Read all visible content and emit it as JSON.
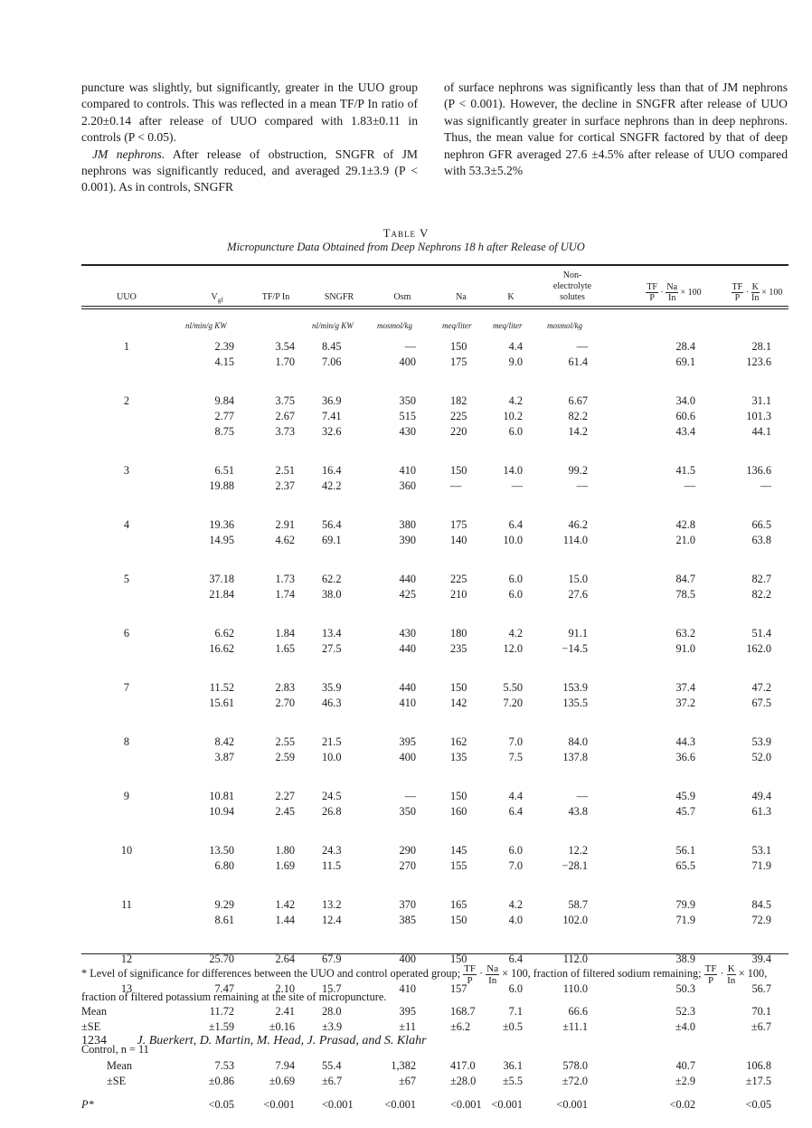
{
  "body_text": {
    "left": {
      "p1": "puncture was slightly, but significantly, greater in the UUO group compared to controls. This was reflected in a mean TF/P In ratio of 2.20±0.14 after release of UUO compared with 1.83±0.11 in controls (P < 0.05).",
      "p2_heading": "JM nephrons.",
      "p2": " After release of obstruction, SNGFR of JM nephrons was significantly reduced, and averaged 29.1±3.9 (P < 0.001). As in controls, SNGFR"
    },
    "right": {
      "p1": "of surface nephrons was significantly less than that of JM nephrons (P < 0.001). However, the decline in SNGFR after release of UUO was significantly greater in surface nephrons than in deep nephrons. Thus, the mean value for cortical SNGFR factored by that of deep nephron GFR averaged 27.6 ±4.5% after release of UUO compared with 53.3±5.2%"
    }
  },
  "table": {
    "title": "Table V",
    "subtitle": "Micropuncture Data Obtained from Deep Nephrons 18 h after Release of UUO",
    "headers": {
      "uuo": "UUO",
      "vg": "V",
      "vg_sub": "gf",
      "tfp_in": "TF/P In",
      "sngfr": "SNGFR",
      "osm": "Osm",
      "na": "Na",
      "k": "K",
      "nes_1": "Non-",
      "nes_2": "electrolyte",
      "nes_3": "solutes",
      "tf": "TF",
      "p": "P",
      "na_num": "Na",
      "k_num": "K",
      "in": "In",
      "times100": "× 100"
    },
    "units": {
      "vg": "nl/min/g KW",
      "sngfr": "nl/min/g KW",
      "osm": "mosmol/kg",
      "na": "meq/liter",
      "k": "meq/liter",
      "nes": "mosmol/kg"
    },
    "groups": [
      {
        "label": "1",
        "rows": [
          [
            "2.39",
            "3.54",
            "8.45",
            "—",
            "150",
            "4.4",
            "—",
            "28.4",
            "28.1"
          ],
          [
            "4.15",
            "1.70",
            "7.06",
            "400",
            "175",
            "9.0",
            "61.4",
            "69.1",
            "123.6"
          ]
        ]
      },
      {
        "label": "2",
        "rows": [
          [
            "9.84",
            "3.75",
            "36.9",
            "350",
            "182",
            "4.2",
            "6.67",
            "34.0",
            "31.1"
          ],
          [
            "2.77",
            "2.67",
            "7.41",
            "515",
            "225",
            "10.2",
            "82.2",
            "60.6",
            "101.3"
          ],
          [
            "8.75",
            "3.73",
            "32.6",
            "430",
            "220",
            "6.0",
            "14.2",
            "43.4",
            "44.1"
          ]
        ]
      },
      {
        "label": "3",
        "rows": [
          [
            "6.51",
            "2.51",
            "16.4",
            "410",
            "150",
            "14.0",
            "99.2",
            "41.5",
            "136.6"
          ],
          [
            "19.88",
            "2.37",
            "42.2",
            "360",
            "—",
            "—",
            "—",
            "—",
            "—"
          ]
        ]
      },
      {
        "label": "4",
        "rows": [
          [
            "19.36",
            "2.91",
            "56.4",
            "380",
            "175",
            "6.4",
            "46.2",
            "42.8",
            "66.5"
          ],
          [
            "14.95",
            "4.62",
            "69.1",
            "390",
            "140",
            "10.0",
            "114.0",
            "21.0",
            "63.8"
          ]
        ]
      },
      {
        "label": "5",
        "rows": [
          [
            "37.18",
            "1.73",
            "62.2",
            "440",
            "225",
            "6.0",
            "15.0",
            "84.7",
            "82.7"
          ],
          [
            "21.84",
            "1.74",
            "38.0",
            "425",
            "210",
            "6.0",
            "27.6",
            "78.5",
            "82.2"
          ]
        ]
      },
      {
        "label": "6",
        "rows": [
          [
            "6.62",
            "1.84",
            "13.4",
            "430",
            "180",
            "4.2",
            "91.1",
            "63.2",
            "51.4"
          ],
          [
            "16.62",
            "1.65",
            "27.5",
            "440",
            "235",
            "12.0",
            "−14.5",
            "91.0",
            "162.0"
          ]
        ]
      },
      {
        "label": "7",
        "rows": [
          [
            "11.52",
            "2.83",
            "35.9",
            "440",
            "150",
            "5.50",
            "153.9",
            "37.4",
            "47.2"
          ],
          [
            "15.61",
            "2.70",
            "46.3",
            "410",
            "142",
            "7.20",
            "135.5",
            "37.2",
            "67.5"
          ]
        ]
      },
      {
        "label": "8",
        "rows": [
          [
            "8.42",
            "2.55",
            "21.5",
            "395",
            "162",
            "7.0",
            "84.0",
            "44.3",
            "53.9"
          ],
          [
            "3.87",
            "2.59",
            "10.0",
            "400",
            "135",
            "7.5",
            "137.8",
            "36.6",
            "52.0"
          ]
        ]
      },
      {
        "label": "9",
        "rows": [
          [
            "10.81",
            "2.27",
            "24.5",
            "—",
            "150",
            "4.4",
            "—",
            "45.9",
            "49.4"
          ],
          [
            "10.94",
            "2.45",
            "26.8",
            "350",
            "160",
            "6.4",
            "43.8",
            "45.7",
            "61.3"
          ]
        ]
      },
      {
        "label": "10",
        "rows": [
          [
            "13.50",
            "1.80",
            "24.3",
            "290",
            "145",
            "6.0",
            "12.2",
            "56.1",
            "53.1"
          ],
          [
            "6.80",
            "1.69",
            "11.5",
            "270",
            "155",
            "7.0",
            "−28.1",
            "65.5",
            "71.9"
          ]
        ]
      },
      {
        "label": "11",
        "rows": [
          [
            "9.29",
            "1.42",
            "13.2",
            "370",
            "165",
            "4.2",
            "58.7",
            "79.9",
            "84.5"
          ],
          [
            "8.61",
            "1.44",
            "12.4",
            "385",
            "150",
            "4.0",
            "102.0",
            "71.9",
            "72.9"
          ]
        ]
      },
      {
        "label": "12",
        "rows": [
          [
            "25.70",
            "2.64",
            "67.9",
            "400",
            "150",
            "6.4",
            "112.0",
            "38.9",
            "39.4"
          ]
        ]
      },
      {
        "label": "13",
        "rows": [
          [
            "7.47",
            "2.10",
            "15.7",
            "410",
            "157",
            "6.0",
            "110.0",
            "50.3",
            "56.7"
          ]
        ]
      }
    ],
    "uuo_summary": [
      {
        "label": "Mean",
        "values": [
          "11.72",
          "2.41",
          "28.0",
          "395",
          "168.7",
          "7.1",
          "66.6",
          "52.3",
          "70.1"
        ]
      },
      {
        "label": "±SE",
        "values": [
          "±1.59",
          "±0.16",
          "±3.9",
          "±11",
          "±6.2",
          "±0.5",
          "±11.1",
          "±4.0",
          "±6.7"
        ]
      }
    ],
    "control_label": "Control, n = 11",
    "control_summary": [
      {
        "label": "Mean",
        "values": [
          "7.53",
          "7.94",
          "55.4",
          "1,382",
          "417.0",
          "36.1",
          "578.0",
          "40.7",
          "106.8"
        ]
      },
      {
        "label": "±SE",
        "values": [
          "±0.86",
          "±0.69",
          "±6.7",
          "±67",
          "±28.0",
          "±5.5",
          "±72.0",
          "±2.9",
          "±17.5"
        ]
      }
    ],
    "p_row": {
      "label": "P*",
      "values": [
        "<0.05",
        "<0.001",
        "<0.001",
        "<0.001",
        "<0.001",
        "<0.001",
        "<0.001",
        "<0.02",
        "<0.05"
      ]
    }
  },
  "footnote": {
    "part1": "* Level of significance for differences between the UUO and control operated group; ",
    "part2": " fraction of filtered sodium remaining; ",
    "part3": " fraction of filtered potassium remaining at the site of micropuncture.",
    "times100": "× 100,"
  },
  "page_footer": {
    "page_number": "1234",
    "authors": "J. Buerkert, D. Martin, M. Head, J. Prasad, and S. Klahr"
  }
}
